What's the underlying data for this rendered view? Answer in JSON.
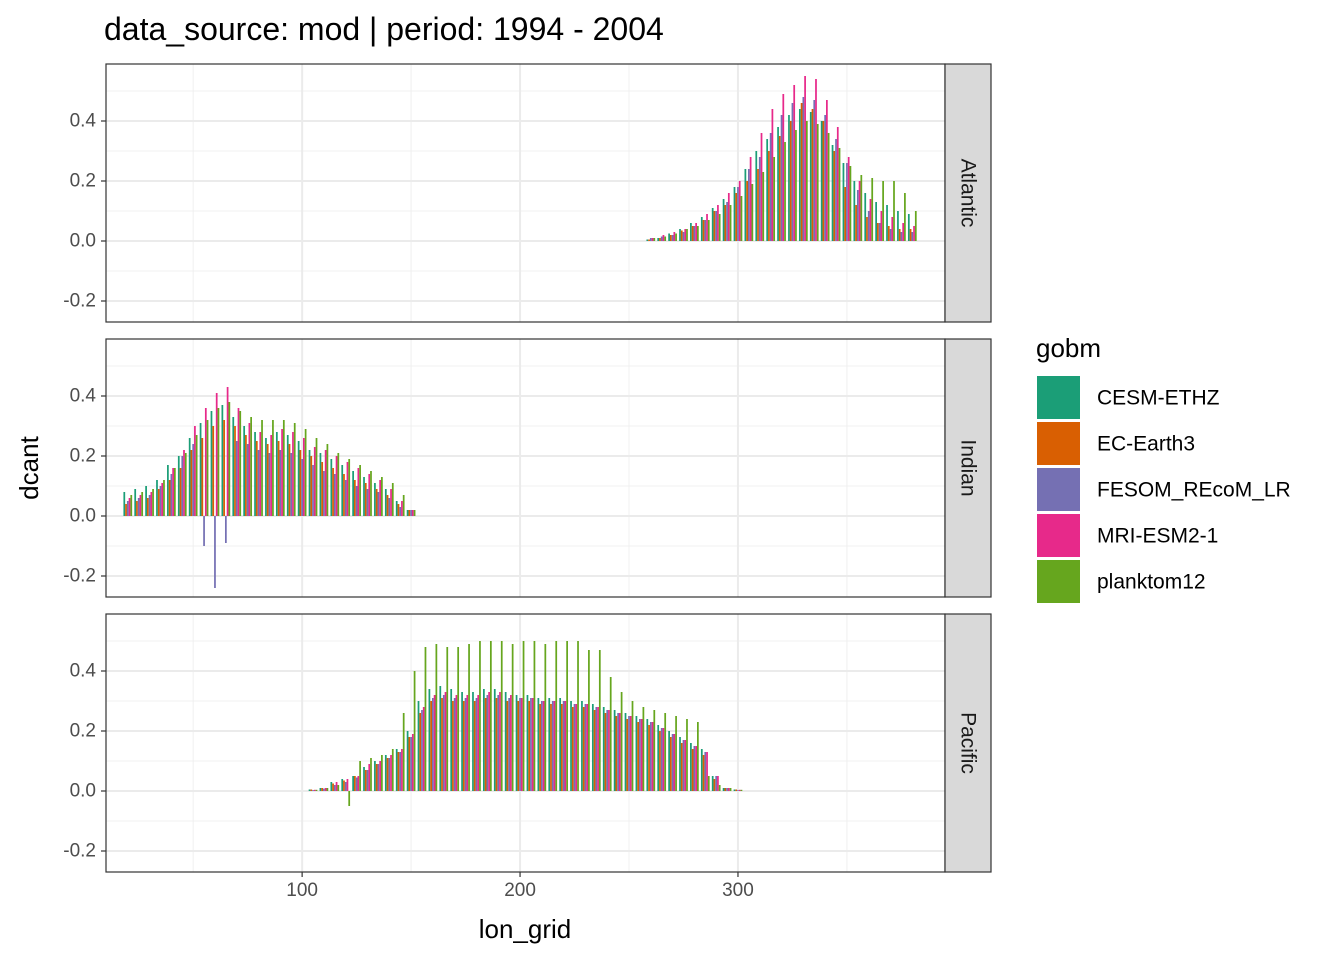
{
  "chart_data": {
    "type": "bar",
    "title": "data_source: mod | period: 1994 - 2004",
    "xlabel": "lon_grid",
    "ylabel": "dcant",
    "xlim": [
      10,
      395
    ],
    "ylim": [
      -0.27,
      0.59
    ],
    "x_ticks": [
      100,
      200,
      300
    ],
    "y_ticks": [
      -0.2,
      0.0,
      0.2,
      0.4
    ],
    "y_tick_labels": [
      "-0.2",
      "0.0",
      "0.2",
      "0.4"
    ],
    "grid": true,
    "legend": {
      "title": "gobm",
      "position": "right",
      "entries": [
        {
          "name": "CESM-ETHZ",
          "color": "#1B9E77"
        },
        {
          "name": "EC-Earth3",
          "color": "#D95F02"
        },
        {
          "name": "FESOM_REcoM_LR",
          "color": "#7570B3"
        },
        {
          "name": "MRI-ESM2-1",
          "color": "#E7298A"
        },
        {
          "name": "planktom12",
          "color": "#66A61E"
        }
      ]
    },
    "panels": [
      {
        "name": "Atlantic",
        "x": [
          260,
          265,
          270,
          275,
          280,
          285,
          290,
          295,
          300,
          305,
          310,
          315,
          320,
          325,
          330,
          335,
          340,
          345,
          350,
          355,
          360,
          365,
          370,
          375,
          380
        ],
        "series": [
          {
            "name": "CESM-ETHZ",
            "values": [
              0.005,
              0.01,
              0.025,
              0.04,
              0.06,
              0.08,
              0.11,
              0.14,
              0.18,
              0.24,
              0.3,
              0.34,
              0.38,
              0.42,
              0.44,
              0.43,
              0.4,
              0.32,
              0.26,
              0.2,
              0.16,
              0.13,
              0.12,
              0.1,
              0.09
            ]
          },
          {
            "name": "EC-Earth3",
            "values": [
              0.005,
              0.01,
              0.02,
              0.035,
              0.05,
              0.07,
              0.1,
              0.12,
              0.16,
              0.2,
              0.24,
              0.3,
              0.35,
              0.4,
              0.46,
              0.44,
              0.4,
              0.3,
              0.18,
              0.12,
              0.08,
              0.06,
              0.05,
              0.04,
              0.04
            ]
          },
          {
            "name": "FESOM_REcoM_LR",
            "values": [
              0.01,
              0.015,
              0.02,
              0.03,
              0.05,
              0.07,
              0.1,
              0.13,
              0.18,
              0.24,
              0.28,
              0.36,
              0.42,
              0.46,
              0.48,
              0.47,
              0.42,
              0.34,
              0.26,
              0.17,
              0.1,
              0.06,
              0.04,
              0.03,
              0.03
            ]
          },
          {
            "name": "MRI-ESM2-1",
            "values": [
              0.01,
              0.02,
              0.03,
              0.04,
              0.06,
              0.09,
              0.12,
              0.16,
              0.2,
              0.28,
              0.36,
              0.44,
              0.49,
              0.52,
              0.55,
              0.54,
              0.47,
              0.38,
              0.28,
              0.2,
              0.14,
              0.1,
              0.08,
              0.06,
              0.05
            ]
          },
          {
            "name": "planktom12",
            "values": [
              0.01,
              0.015,
              0.025,
              0.04,
              0.05,
              0.07,
              0.09,
              0.12,
              0.15,
              0.19,
              0.23,
              0.28,
              0.33,
              0.37,
              0.4,
              0.39,
              0.36,
              0.31,
              0.25,
              0.22,
              0.21,
              0.2,
              0.2,
              0.16,
              0.1
            ]
          }
        ]
      },
      {
        "name": "Indian",
        "x": [
          20,
          25,
          30,
          35,
          40,
          45,
          50,
          55,
          60,
          65,
          70,
          75,
          80,
          85,
          90,
          95,
          100,
          105,
          110,
          115,
          120,
          125,
          130,
          135,
          140,
          145,
          150
        ],
        "series": [
          {
            "name": "CESM-ETHZ",
            "values": [
              0.08,
              0.09,
              0.1,
              0.12,
              0.17,
              0.2,
              0.26,
              0.31,
              0.35,
              0.37,
              0.33,
              0.3,
              0.28,
              0.26,
              0.28,
              0.27,
              0.25,
              0.22,
              0.21,
              0.19,
              0.17,
              0.15,
              0.13,
              0.11,
              0.09,
              0.05,
              0.02
            ]
          },
          {
            "name": "EC-Earth3",
            "values": [
              0.04,
              0.05,
              0.06,
              0.09,
              0.12,
              0.16,
              0.22,
              0.26,
              0.3,
              0.32,
              0.3,
              0.27,
              0.25,
              0.24,
              0.25,
              0.24,
              0.22,
              0.2,
              0.18,
              0.16,
              0.14,
              0.12,
              0.11,
              0.09,
              0.07,
              0.04,
              0.02
            ]
          },
          {
            "name": "FESOM_REcoM_LR",
            "values": [
              0.05,
              0.06,
              0.07,
              0.1,
              0.14,
              0.2,
              0.24,
              -0.1,
              -0.24,
              -0.09,
              0.25,
              0.24,
              0.22,
              0.21,
              0.22,
              0.21,
              0.19,
              0.17,
              0.15,
              0.14,
              0.12,
              0.1,
              0.09,
              0.08,
              0.06,
              0.03,
              0.02
            ]
          },
          {
            "name": "MRI-ESM2-1",
            "values": [
              0.06,
              0.07,
              0.08,
              0.11,
              0.16,
              0.22,
              0.3,
              0.36,
              0.41,
              0.43,
              0.36,
              0.31,
              0.28,
              0.27,
              0.29,
              0.28,
              0.26,
              0.23,
              0.22,
              0.2,
              0.18,
              0.16,
              0.14,
              0.12,
              0.09,
              0.05,
              0.02
            ]
          },
          {
            "name": "planktom12",
            "values": [
              0.07,
              0.08,
              0.09,
              0.12,
              0.16,
              0.21,
              0.27,
              0.32,
              0.36,
              0.38,
              0.35,
              0.33,
              0.32,
              0.32,
              0.32,
              0.31,
              0.29,
              0.26,
              0.24,
              0.21,
              0.19,
              0.17,
              0.15,
              0.13,
              0.11,
              0.07,
              0.02
            ]
          }
        ]
      },
      {
        "name": "Pacific",
        "x": [
          105,
          110,
          115,
          120,
          125,
          130,
          135,
          140,
          145,
          150,
          155,
          160,
          165,
          170,
          175,
          180,
          185,
          190,
          195,
          200,
          205,
          210,
          215,
          220,
          225,
          230,
          235,
          240,
          245,
          250,
          255,
          260,
          265,
          270,
          275,
          280,
          285,
          290,
          295,
          300
        ],
        "series": [
          {
            "name": "CESM-ETHZ",
            "values": [
              0.005,
              0.01,
              0.03,
              0.04,
              0.05,
              0.08,
              0.1,
              0.12,
              0.14,
              0.2,
              0.3,
              0.34,
              0.35,
              0.34,
              0.33,
              0.33,
              0.34,
              0.34,
              0.33,
              0.32,
              0.32,
              0.31,
              0.31,
              0.31,
              0.3,
              0.3,
              0.29,
              0.28,
              0.27,
              0.26,
              0.25,
              0.24,
              0.22,
              0.2,
              0.18,
              0.16,
              0.14,
              0.05,
              0.01,
              0.005
            ]
          },
          {
            "name": "EC-Earth3",
            "values": [
              0.005,
              0.01,
              0.025,
              0.035,
              0.05,
              0.07,
              0.09,
              0.11,
              0.13,
              0.18,
              0.26,
              0.3,
              0.31,
              0.3,
              0.3,
              0.3,
              0.31,
              0.31,
              0.3,
              0.3,
              0.3,
              0.29,
              0.29,
              0.29,
              0.28,
              0.28,
              0.27,
              0.26,
              0.25,
              0.24,
              0.23,
              0.22,
              0.2,
              0.18,
              0.16,
              0.14,
              0.12,
              0.04,
              0.01,
              0.005
            ]
          },
          {
            "name": "FESOM_REcoM_LR",
            "values": [
              0.003,
              0.008,
              0.02,
              0.03,
              0.045,
              0.07,
              0.09,
              0.11,
              0.13,
              0.18,
              0.27,
              0.31,
              0.32,
              0.31,
              0.31,
              0.31,
              0.32,
              0.32,
              0.31,
              0.31,
              0.31,
              0.3,
              0.3,
              0.3,
              0.29,
              0.29,
              0.28,
              0.27,
              0.26,
              0.25,
              0.24,
              0.23,
              0.21,
              0.19,
              0.17,
              0.15,
              0.13,
              0.05,
              0.01,
              0.003
            ]
          },
          {
            "name": "MRI-ESM2-1",
            "values": [
              0.004,
              0.01,
              0.03,
              0.04,
              0.05,
              0.09,
              0.1,
              0.12,
              0.14,
              0.19,
              0.28,
              0.32,
              0.33,
              0.32,
              0.32,
              0.32,
              0.33,
              0.33,
              0.32,
              0.31,
              0.31,
              0.3,
              0.3,
              0.3,
              0.29,
              0.29,
              0.28,
              0.27,
              0.26,
              0.25,
              0.24,
              0.23,
              0.21,
              0.19,
              0.17,
              0.15,
              0.13,
              0.05,
              0.01,
              0.004
            ]
          },
          {
            "name": "planktom12",
            "values": [
              0.004,
              0.01,
              0.02,
              -0.05,
              0.1,
              0.11,
              0.12,
              0.14,
              0.26,
              0.4,
              0.48,
              0.49,
              0.48,
              0.48,
              0.49,
              0.5,
              0.5,
              0.5,
              0.49,
              0.5,
              0.5,
              0.49,
              0.5,
              0.5,
              0.5,
              0.47,
              0.47,
              0.38,
              0.33,
              0.3,
              0.28,
              0.27,
              0.26,
              0.25,
              0.24,
              0.23,
              0.05,
              0.02,
              0.01,
              0.004
            ]
          }
        ]
      }
    ]
  }
}
